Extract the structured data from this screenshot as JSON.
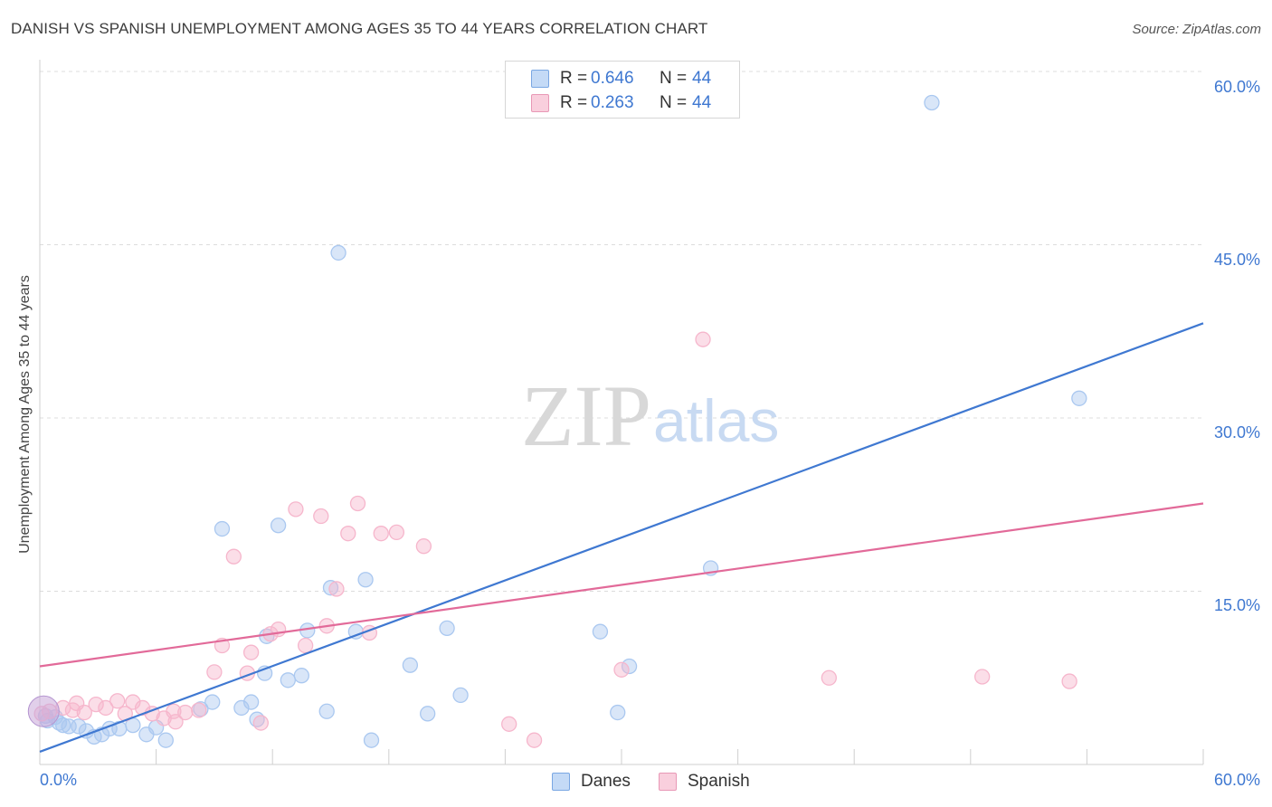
{
  "title": "DANISH VS SPANISH UNEMPLOYMENT AMONG AGES 35 TO 44 YEARS CORRELATION CHART",
  "source": "Source: ZipAtlas.com",
  "watermark": {
    "zip": "ZIP",
    "atlas": "atlas"
  },
  "legend_top": {
    "rows": [
      {
        "r_label": "R =",
        "r_value": "0.646",
        "n_label": "N =",
        "n_value": "44",
        "color": "#aac8f0"
      },
      {
        "r_label": "R =",
        "r_value": "0.263",
        "n_label": "N =",
        "n_value": "44",
        "color": "#f6b6cc"
      }
    ]
  },
  "chart_data": {
    "type": "scatter",
    "title": "DANISH VS SPANISH UNEMPLOYMENT AMONG AGES 35 TO 44 YEARS CORRELATION CHART",
    "xlabel": "",
    "ylabel": "Unemployment Among Ages 35 to 44 years",
    "xlim": [
      0,
      60
    ],
    "ylim": [
      0,
      60
    ],
    "x_tick_labels": [
      "0.0%",
      "60.0%"
    ],
    "y_ticks": [
      15,
      30,
      45,
      60
    ],
    "y_tick_labels": [
      "15.0%",
      "30.0%",
      "45.0%",
      "60.0%"
    ],
    "grid": true,
    "legend_position": "bottom",
    "series": [
      {
        "name": "Danes",
        "color": "#3f78d1",
        "fill": "#aac8f0",
        "trend": {
          "x": [
            0,
            60
          ],
          "y": [
            1.1,
            38.2
          ]
        },
        "points": [
          [
            0.3,
            4.2
          ],
          [
            0.8,
            4.1
          ],
          [
            1.2,
            3.4
          ],
          [
            1.5,
            3.3
          ],
          [
            2.0,
            3.3
          ],
          [
            2.4,
            2.9
          ],
          [
            2.8,
            2.4
          ],
          [
            3.2,
            2.6
          ],
          [
            3.6,
            3.1
          ],
          [
            4.1,
            3.1
          ],
          [
            4.8,
            3.4
          ],
          [
            5.5,
            2.6
          ],
          [
            6.0,
            3.2
          ],
          [
            6.5,
            2.1
          ],
          [
            8.3,
            4.8
          ],
          [
            8.9,
            5.4
          ],
          [
            9.4,
            20.4
          ],
          [
            10.4,
            4.9
          ],
          [
            10.9,
            5.4
          ],
          [
            11.2,
            3.9
          ],
          [
            11.6,
            7.9
          ],
          [
            11.7,
            11.1
          ],
          [
            12.3,
            20.7
          ],
          [
            12.8,
            7.3
          ],
          [
            13.5,
            7.7
          ],
          [
            13.8,
            11.6
          ],
          [
            14.8,
            4.6
          ],
          [
            15.0,
            15.3
          ],
          [
            15.4,
            44.3
          ],
          [
            16.3,
            11.5
          ],
          [
            16.8,
            16.0
          ],
          [
            17.1,
            2.1
          ],
          [
            19.1,
            8.6
          ],
          [
            20.0,
            4.4
          ],
          [
            21.0,
            11.8
          ],
          [
            21.7,
            6.0
          ],
          [
            28.9,
            11.5
          ],
          [
            29.8,
            4.5
          ],
          [
            30.4,
            8.5
          ],
          [
            34.6,
            17.0
          ],
          [
            46.0,
            57.3
          ],
          [
            53.6,
            31.7
          ],
          [
            0.4,
            3.8
          ],
          [
            1.0,
            3.6
          ]
        ]
      },
      {
        "name": "Spanish",
        "color": "#e26a99",
        "fill": "#f6b6cc",
        "trend": {
          "x": [
            0,
            60
          ],
          "y": [
            8.5,
            22.6
          ]
        },
        "points": [
          [
            0.1,
            4.4
          ],
          [
            0.5,
            4.6
          ],
          [
            1.2,
            4.9
          ],
          [
            1.7,
            4.7
          ],
          [
            2.3,
            4.5
          ],
          [
            2.9,
            5.2
          ],
          [
            3.4,
            4.9
          ],
          [
            4.0,
            5.5
          ],
          [
            4.4,
            4.4
          ],
          [
            4.8,
            5.4
          ],
          [
            5.3,
            4.9
          ],
          [
            5.8,
            4.4
          ],
          [
            6.4,
            4.0
          ],
          [
            6.9,
            4.6
          ],
          [
            7.5,
            4.5
          ],
          [
            8.2,
            4.7
          ],
          [
            9.0,
            8.0
          ],
          [
            9.4,
            10.3
          ],
          [
            10.0,
            18.0
          ],
          [
            10.7,
            7.9
          ],
          [
            10.9,
            9.7
          ],
          [
            11.4,
            3.6
          ],
          [
            11.9,
            11.3
          ],
          [
            12.3,
            11.7
          ],
          [
            13.2,
            22.1
          ],
          [
            13.7,
            10.3
          ],
          [
            14.5,
            21.5
          ],
          [
            14.8,
            12.0
          ],
          [
            15.3,
            15.2
          ],
          [
            15.9,
            20.0
          ],
          [
            16.4,
            22.6
          ],
          [
            17.0,
            11.4
          ],
          [
            17.6,
            20.0
          ],
          [
            18.4,
            20.1
          ],
          [
            19.8,
            18.9
          ],
          [
            24.2,
            3.5
          ],
          [
            25.5,
            2.1
          ],
          [
            30.0,
            8.2
          ],
          [
            34.2,
            36.8
          ],
          [
            40.7,
            7.5
          ],
          [
            48.6,
            7.6
          ],
          [
            53.1,
            7.2
          ],
          [
            1.9,
            5.3
          ],
          [
            7.0,
            3.7
          ]
        ]
      }
    ]
  },
  "legend_bottom": [
    {
      "label": "Danes",
      "color": "#aac8f0",
      "stroke": "#7aa7e3"
    },
    {
      "label": "Spanish",
      "color": "#f6b6cc",
      "stroke": "#e898b6"
    }
  ]
}
